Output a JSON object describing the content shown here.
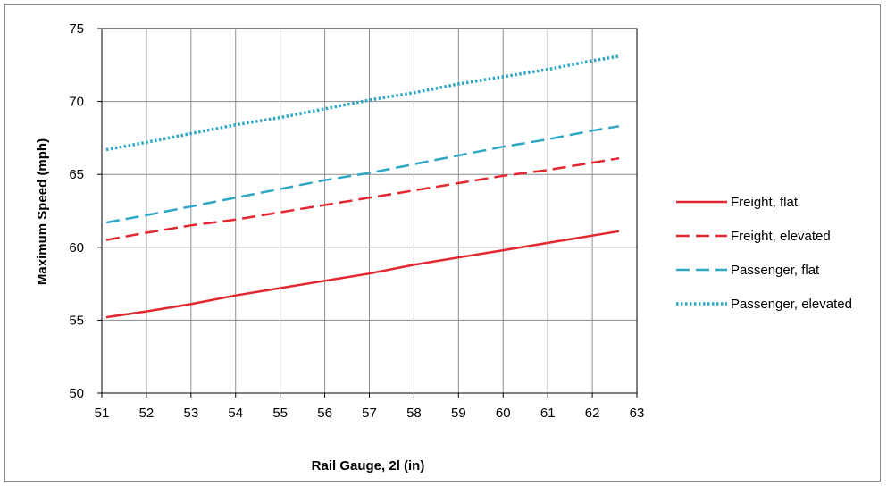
{
  "chart_data": {
    "type": "line",
    "title": "",
    "xlabel": "Rail Gauge, 2l (in)",
    "ylabel": "Maximum Speed (mph)",
    "xlim": [
      51,
      63
    ],
    "ylim": [
      50,
      75
    ],
    "xticks": [
      51,
      52,
      53,
      54,
      55,
      56,
      57,
      58,
      59,
      60,
      61,
      62,
      63
    ],
    "yticks": [
      50,
      55,
      60,
      65,
      70,
      75
    ],
    "grid": true,
    "legend_position": "right",
    "series": [
      {
        "name": "Freight, flat",
        "x": [
          51.1,
          52,
          53,
          54,
          55,
          56,
          57,
          58,
          59,
          60,
          61,
          62,
          62.6
        ],
        "y": [
          55.2,
          55.6,
          56.1,
          56.7,
          57.2,
          57.7,
          58.2,
          58.8,
          59.3,
          59.8,
          60.3,
          60.8,
          61.1
        ],
        "color": "#e3262f",
        "style": "solid"
      },
      {
        "name": "Freight, elevated",
        "x": [
          51.1,
          52,
          53,
          54,
          55,
          56,
          57,
          58,
          59,
          60,
          61,
          62,
          62.6
        ],
        "y": [
          60.5,
          61.0,
          61.5,
          61.9,
          62.4,
          62.9,
          63.4,
          63.9,
          64.4,
          64.9,
          65.3,
          65.8,
          66.1
        ],
        "color": "#e3262f",
        "style": "dashed"
      },
      {
        "name": "Passenger, flat",
        "x": [
          51.1,
          52,
          53,
          54,
          55,
          56,
          57,
          58,
          59,
          60,
          61,
          62,
          62.6
        ],
        "y": [
          61.7,
          62.2,
          62.8,
          63.4,
          64.0,
          64.6,
          65.1,
          65.7,
          66.3,
          66.9,
          67.4,
          68.0,
          68.3
        ],
        "color": "#2fa6c4",
        "style": "dashed"
      },
      {
        "name": "Passenger, elevated",
        "x": [
          51.1,
          52,
          53,
          54,
          55,
          56,
          57,
          58,
          59,
          60,
          61,
          62,
          62.6
        ],
        "y": [
          66.7,
          67.2,
          67.8,
          68.4,
          68.9,
          69.5,
          70.1,
          70.6,
          71.2,
          71.7,
          72.2,
          72.8,
          73.1
        ],
        "color": "#2fa6c4",
        "style": "dotted"
      }
    ]
  }
}
